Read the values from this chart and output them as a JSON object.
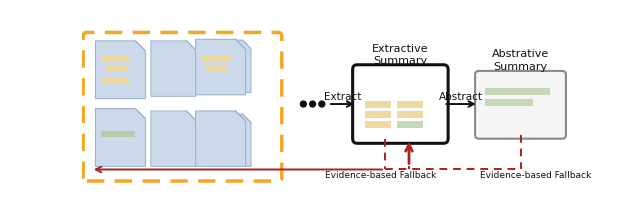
{
  "bg_color": "#ffffff",
  "doc_box_color": "#ccd9ea",
  "doc_border_color": "#9ab5cc",
  "orange_dashed_color": "#f5a623",
  "red_dashed_color": "#aa2222",
  "extract_box_color": "#ffffff",
  "extract_box_border": "#111111",
  "abstract_box_color": "#f5f5f5",
  "abstract_box_border": "#888888",
  "highlight_yellow": "#eed9a0",
  "highlight_green_light": "#c5d9b8",
  "highlight_green": "#b8ccaa",
  "title_extractive": "Extractive\nSummary",
  "title_abstractive": "Abstrative\nSummary",
  "label_extract": "Extract",
  "label_abstract": "Abstract",
  "label_fallback1": "Evidence-based Fallback",
  "label_fallback2": "Evidence-based Fallback",
  "dots_color": "#111111",
  "arrow_color": "#111111",
  "text_color": "#111111"
}
